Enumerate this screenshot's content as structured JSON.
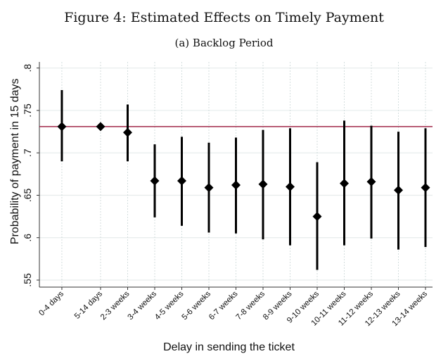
{
  "title": "Figure 4: Estimated Effects on Timely Payment",
  "subtitle": "(a) Backlog Period",
  "chart_data": {
    "type": "scatter",
    "title": "Figure 4: Estimated Effects on Timely Payment",
    "subtitle": "(a) Backlog Period",
    "xlabel": "Delay in sending the ticket",
    "ylabel": "Probability of payment in 15 days",
    "ylim": [
      0.55,
      0.8
    ],
    "xlim": [
      -0.26,
      14.26
    ],
    "yticks": [
      0.55,
      0.6,
      0.65,
      0.7,
      0.75,
      0.8
    ],
    "ytick_labels": [
      ".55",
      ".6",
      ".65",
      ".7",
      ".75",
      ".8"
    ],
    "grid": true,
    "reference_line": {
      "y": 0.731,
      "color": "#a0284a"
    },
    "marker_color": "#000000",
    "categories": [
      "0-4 days",
      "5-14 days",
      "2-3 weeks",
      "3-4 weeks",
      "4-5 weeks",
      "5-6 weeks",
      "6-7 weeks",
      "7-8 weeks",
      "8-9 weeks",
      "9-10 weeks",
      "10-11 weeks",
      "11-12 weeks",
      "12-13 weeks",
      "13-14 weeks"
    ],
    "x": [
      0.57,
      2,
      3,
      4,
      5,
      6,
      7,
      8,
      9,
      10,
      11,
      12,
      13,
      14
    ],
    "estimate": [
      0.731,
      0.731,
      0.724,
      0.667,
      0.667,
      0.659,
      0.662,
      0.663,
      0.66,
      0.625,
      0.664,
      0.666,
      0.656,
      0.659
    ],
    "ci_low": [
      0.69,
      null,
      0.69,
      0.624,
      0.614,
      0.606,
      0.605,
      0.598,
      0.591,
      0.562,
      0.591,
      0.599,
      0.586,
      0.589
    ],
    "ci_high": [
      0.774,
      null,
      0.757,
      0.71,
      0.719,
      0.712,
      0.718,
      0.727,
      0.729,
      0.689,
      0.738,
      0.732,
      0.725,
      0.729
    ]
  }
}
